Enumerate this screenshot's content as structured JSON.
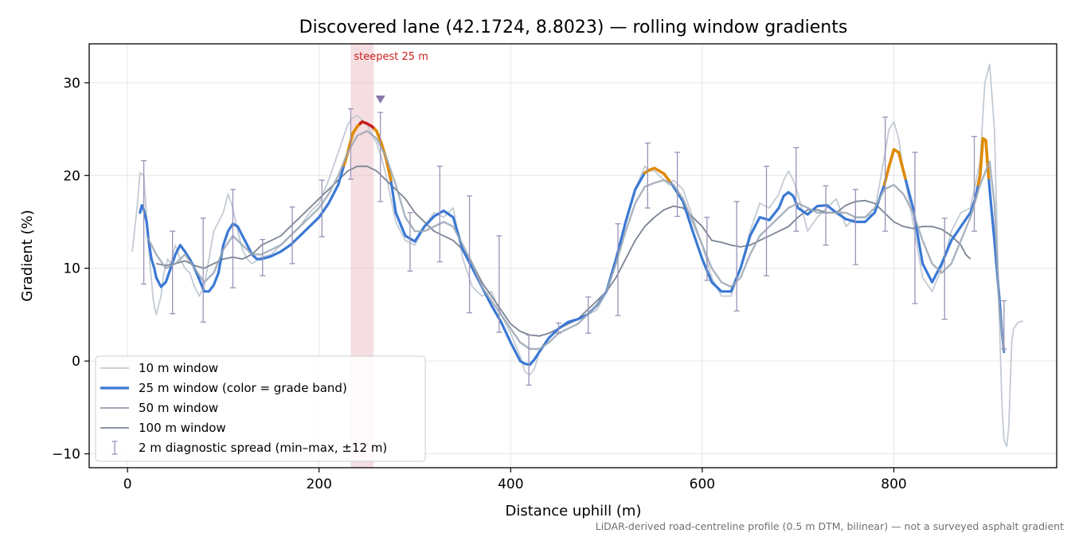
{
  "chart_data": {
    "type": "line",
    "title": "Discovered lane (42.1724, 8.8023) — rolling window gradients",
    "xlabel": "Distance uphill (m)",
    "ylabel": "Gradient (%)",
    "xlim": [
      -40,
      970
    ],
    "ylim": [
      -11.5,
      34.2
    ],
    "xticks": [
      0,
      200,
      400,
      600,
      800
    ],
    "yticks": [
      -10,
      0,
      10,
      20,
      30
    ],
    "ytick_labels": [
      "−10",
      "0",
      "10",
      "20",
      "30"
    ],
    "grid": true,
    "legend_position": "lower-left",
    "footnote": "LiDAR-derived road-centreline profile (0.5 m DTM, bilinear) — not a surveyed asphalt gradient",
    "annotation": {
      "text": "steepest 25 m",
      "x_start": 233,
      "x_end": 257,
      "marker_x": 264,
      "marker_y": 28.2
    },
    "colors": {
      "w10": "#c3cbd4",
      "w25_blue": "#3a78d4",
      "w25_orange": "#e08a00",
      "w25_red": "#c81e1e",
      "w50": "#9aa6b4",
      "w100": "#7b8494",
      "error": "#9a92b8",
      "shade": "#e9b5bd",
      "marker": "#8878a8",
      "annotation": "#c81e1e"
    },
    "series": [
      {
        "name": "10 m window",
        "x": [
          5,
          10,
          13,
          17,
          20,
          23,
          27,
          30,
          35,
          38,
          42,
          45,
          50,
          55,
          60,
          65,
          70,
          75,
          80,
          85,
          90,
          100,
          105,
          110,
          115,
          120,
          125,
          130,
          140,
          150,
          160,
          170,
          180,
          190,
          200,
          210,
          220,
          225,
          230,
          235,
          240,
          245,
          250,
          255,
          260,
          265,
          270,
          275,
          280,
          290,
          300,
          310,
          320,
          330,
          340,
          350,
          360,
          370,
          380,
          390,
          400,
          410,
          415,
          420,
          425,
          430,
          440,
          450,
          460,
          470,
          480,
          490,
          500,
          510,
          520,
          530,
          540,
          545,
          550,
          555,
          560,
          565,
          570,
          580,
          590,
          600,
          610,
          620,
          630,
          640,
          650,
          660,
          670,
          680,
          685,
          690,
          695,
          700,
          710,
          720,
          730,
          740,
          750,
          760,
          770,
          780,
          790,
          795,
          800,
          805,
          810,
          820,
          830,
          840,
          850,
          860,
          870,
          880,
          890,
          895,
          900,
          905,
          910,
          913,
          915,
          918,
          920,
          923,
          925,
          930,
          935
        ],
        "values": [
          11.8,
          16.5,
          20.3,
          20.0,
          15.5,
          11.0,
          6.5,
          5.0,
          7.0,
          9.5,
          11.0,
          10.5,
          12.5,
          11.0,
          10.0,
          9.5,
          8.0,
          7.0,
          8.0,
          11.0,
          14.0,
          16.0,
          18.0,
          16.5,
          14.0,
          12.0,
          11.0,
          10.5,
          11.2,
          11.5,
          12.5,
          13.5,
          14.5,
          16.0,
          17.0,
          19.5,
          22.5,
          24.0,
          25.5,
          26.2,
          26.5,
          26.0,
          25.5,
          24.5,
          23.5,
          22.0,
          20.0,
          17.5,
          15.0,
          13.0,
          12.5,
          14.5,
          16.0,
          15.5,
          16.5,
          11.0,
          8.0,
          7.0,
          7.5,
          5.0,
          3.0,
          0.5,
          -1.2,
          -1.5,
          -0.8,
          1.0,
          2.5,
          3.5,
          4.0,
          4.5,
          5.0,
          5.5,
          7.5,
          11.0,
          15.0,
          18.5,
          21.0,
          20.5,
          20.5,
          20.0,
          19.5,
          19.0,
          19.5,
          18.5,
          15.5,
          12.5,
          9.0,
          7.0,
          7.0,
          10.0,
          14.0,
          17.0,
          16.5,
          18.0,
          19.5,
          20.5,
          19.5,
          18.0,
          14.0,
          15.5,
          16.5,
          17.5,
          14.5,
          15.5,
          15.5,
          16.0,
          22.0,
          25.0,
          25.8,
          24.0,
          20.5,
          15.0,
          9.0,
          7.5,
          10.0,
          14.0,
          16.0,
          16.5,
          21.5,
          30.0,
          32.0,
          25.0,
          5.0,
          -5.0,
          -8.5,
          -9.2,
          -7.0,
          2.0,
          3.5,
          4.2,
          4.3
        ]
      },
      {
        "name": "25 m window (color = grade band)",
        "x": [
          13,
          15,
          17,
          20,
          22,
          25,
          28,
          30,
          35,
          40,
          45,
          50,
          55,
          60,
          65,
          70,
          75,
          80,
          85,
          90,
          95,
          100,
          105,
          110,
          115,
          120,
          125,
          130,
          135,
          140,
          150,
          160,
          170,
          180,
          190,
          200,
          210,
          220,
          230,
          235,
          240,
          245,
          250,
          255,
          260,
          265,
          270,
          275,
          280,
          290,
          300,
          310,
          320,
          330,
          340,
          350,
          360,
          370,
          380,
          390,
          400,
          410,
          415,
          420,
          425,
          430,
          440,
          450,
          460,
          470,
          480,
          490,
          500,
          510,
          520,
          530,
          540,
          545,
          550,
          555,
          560,
          565,
          570,
          580,
          590,
          600,
          610,
          620,
          630,
          640,
          650,
          660,
          670,
          680,
          685,
          690,
          695,
          700,
          710,
          720,
          730,
          740,
          750,
          760,
          770,
          780,
          790,
          795,
          800,
          805,
          810,
          820,
          830,
          840,
          850,
          860,
          870,
          880,
          885,
          890,
          893,
          896,
          898,
          900,
          905,
          910,
          913,
          915
        ],
        "values": [
          16.0,
          16.8,
          16.3,
          15.0,
          13.0,
          11.0,
          10.0,
          9.0,
          8.0,
          8.5,
          10.0,
          11.5,
          12.5,
          11.8,
          11.0,
          10.0,
          8.8,
          7.5,
          7.5,
          8.2,
          9.5,
          12.5,
          14.0,
          14.8,
          14.5,
          13.5,
          12.5,
          11.5,
          11.0,
          11.0,
          11.3,
          11.8,
          12.5,
          13.5,
          14.5,
          15.5,
          17.0,
          19.0,
          22.5,
          24.5,
          25.3,
          25.8,
          25.6,
          25.3,
          24.8,
          23.5,
          21.8,
          19.5,
          16.0,
          13.5,
          12.9,
          14.5,
          15.6,
          16.2,
          15.5,
          12.0,
          10.0,
          8.0,
          6.0,
          4.2,
          2.0,
          0.0,
          -0.3,
          -0.4,
          0.2,
          1.0,
          2.5,
          3.5,
          4.2,
          4.5,
          5.0,
          6.0,
          7.5,
          11.0,
          15.0,
          18.5,
          20.3,
          20.6,
          20.8,
          20.5,
          20.2,
          19.5,
          18.8,
          17.2,
          14.0,
          11.0,
          8.5,
          7.5,
          7.5,
          10.0,
          13.5,
          15.5,
          15.2,
          16.5,
          17.8,
          18.2,
          17.8,
          16.5,
          15.8,
          16.7,
          16.8,
          16.0,
          15.3,
          15.0,
          15.0,
          16.0,
          19.0,
          21.0,
          22.8,
          22.5,
          20.5,
          16.5,
          10.5,
          8.5,
          10.5,
          13.0,
          14.5,
          16.0,
          17.5,
          20.0,
          24.0,
          23.8,
          21.0,
          18.5,
          13.0,
          7.0,
          3.0,
          1.0
        ]
      },
      {
        "name": "50 m window",
        "x": [
          20,
          30,
          40,
          50,
          60,
          70,
          80,
          90,
          100,
          110,
          120,
          130,
          140,
          150,
          160,
          170,
          180,
          190,
          200,
          210,
          220,
          230,
          240,
          250,
          260,
          270,
          280,
          290,
          300,
          310,
          320,
          330,
          340,
          350,
          360,
          370,
          380,
          390,
          400,
          410,
          420,
          430,
          440,
          450,
          460,
          470,
          480,
          490,
          500,
          510,
          520,
          530,
          540,
          550,
          560,
          570,
          580,
          590,
          600,
          610,
          620,
          630,
          640,
          650,
          660,
          670,
          680,
          690,
          700,
          710,
          720,
          730,
          740,
          750,
          760,
          770,
          780,
          790,
          800,
          810,
          820,
          830,
          840,
          850,
          860,
          870,
          880,
          890,
          900,
          905,
          910,
          915
        ],
        "values": [
          13.5,
          11.5,
          10.0,
          10.5,
          11.5,
          10.0,
          8.5,
          9.5,
          12.0,
          13.5,
          12.5,
          11.5,
          11.5,
          12.0,
          12.5,
          13.5,
          14.5,
          15.5,
          16.5,
          18.0,
          20.0,
          22.5,
          24.3,
          24.8,
          24.0,
          22.0,
          19.0,
          15.5,
          14.0,
          14.0,
          14.5,
          15.0,
          14.5,
          12.5,
          10.5,
          8.0,
          6.5,
          5.0,
          3.5,
          2.0,
          1.3,
          1.3,
          2.0,
          3.0,
          3.5,
          4.0,
          5.0,
          6.0,
          7.5,
          10.5,
          14.0,
          17.0,
          18.8,
          19.2,
          19.5,
          19.0,
          17.5,
          15.0,
          12.5,
          10.0,
          8.5,
          8.0,
          9.0,
          11.5,
          13.5,
          14.5,
          15.5,
          16.5,
          17.0,
          16.5,
          16.0,
          16.0,
          16.0,
          16.0,
          15.5,
          15.5,
          16.5,
          18.5,
          19.0,
          18.0,
          16.0,
          13.0,
          10.5,
          9.5,
          10.5,
          13.0,
          15.5,
          19.0,
          21.5,
          17.0,
          6.0,
          1.0
        ]
      },
      {
        "name": "100 m window",
        "x": [
          30,
          40,
          50,
          60,
          70,
          80,
          90,
          100,
          110,
          120,
          130,
          140,
          150,
          160,
          170,
          180,
          190,
          200,
          210,
          220,
          230,
          240,
          250,
          260,
          270,
          280,
          290,
          300,
          310,
          320,
          330,
          340,
          350,
          360,
          370,
          380,
          390,
          400,
          410,
          420,
          430,
          440,
          450,
          460,
          470,
          480,
          490,
          500,
          510,
          520,
          530,
          540,
          550,
          560,
          570,
          580,
          590,
          600,
          610,
          620,
          630,
          640,
          650,
          660,
          670,
          680,
          690,
          700,
          710,
          720,
          730,
          740,
          750,
          760,
          770,
          780,
          790,
          800,
          810,
          820,
          830,
          840,
          850,
          860,
          870,
          875,
          880
        ],
        "values": [
          10.5,
          10.3,
          10.5,
          10.8,
          10.3,
          10.0,
          10.5,
          11.0,
          11.2,
          11.0,
          11.5,
          12.5,
          13.0,
          13.5,
          14.5,
          15.5,
          16.5,
          17.5,
          18.5,
          19.5,
          20.5,
          21.0,
          21.0,
          20.5,
          19.5,
          18.5,
          17.5,
          16.0,
          15.0,
          14.0,
          13.5,
          13.0,
          12.0,
          10.5,
          8.5,
          7.0,
          5.5,
          4.0,
          3.2,
          2.8,
          2.7,
          3.0,
          3.5,
          4.0,
          4.5,
          5.5,
          6.5,
          7.5,
          9.0,
          11.0,
          13.0,
          14.5,
          15.5,
          16.3,
          16.7,
          16.5,
          15.5,
          14.5,
          13.0,
          12.8,
          12.5,
          12.3,
          12.5,
          13.0,
          13.5,
          14.0,
          14.5,
          15.5,
          16.3,
          16.3,
          16.0,
          16.0,
          16.8,
          17.2,
          17.3,
          17.0,
          16.0,
          15.0,
          14.5,
          14.3,
          14.5,
          14.5,
          14.2,
          13.5,
          12.5,
          11.5,
          11.0
        ]
      }
    ],
    "error_bars": {
      "name": "2 m diagnostic spread (min–max, ±12 m)",
      "x": [
        17,
        47,
        79,
        110,
        141,
        172,
        203,
        233,
        264,
        295,
        326,
        357,
        388,
        419,
        450,
        481,
        512,
        543,
        574,
        605,
        636,
        667,
        698,
        729,
        760,
        791,
        822,
        853,
        884,
        915
      ],
      "low": [
        8.3,
        5.1,
        4.2,
        7.9,
        9.2,
        10.5,
        13.4,
        19.6,
        17.2,
        9.7,
        10.7,
        5.2,
        3.1,
        -2.6,
        3.0,
        3.0,
        4.9,
        16.5,
        15.6,
        8.7,
        5.4,
        9.2,
        14.0,
        12.5,
        10.4,
        14.0,
        6.2,
        4.5,
        14.0,
        1.3
      ],
      "high": [
        21.6,
        14.0,
        15.4,
        18.5,
        13.1,
        16.6,
        19.5,
        27.2,
        26.8,
        16.0,
        21.0,
        17.8,
        13.5,
        2.8,
        4.1,
        6.9,
        14.8,
        23.5,
        22.5,
        15.5,
        17.2,
        21.0,
        23.0,
        18.9,
        18.5,
        26.3,
        22.5,
        15.4,
        24.2,
        6.5
      ]
    },
    "grade_band_segments": [
      {
        "color": "orange",
        "x_start": 226,
        "x_end": 243
      },
      {
        "color": "red",
        "x_start": 243,
        "x_end": 258
      },
      {
        "color": "orange",
        "x_start": 258,
        "x_end": 275
      },
      {
        "color": "orange",
        "x_start": 540,
        "x_end": 566
      },
      {
        "color": "orange",
        "x_start": 790,
        "x_end": 812
      },
      {
        "color": "orange",
        "x_start": 888,
        "x_end": 899
      }
    ]
  }
}
